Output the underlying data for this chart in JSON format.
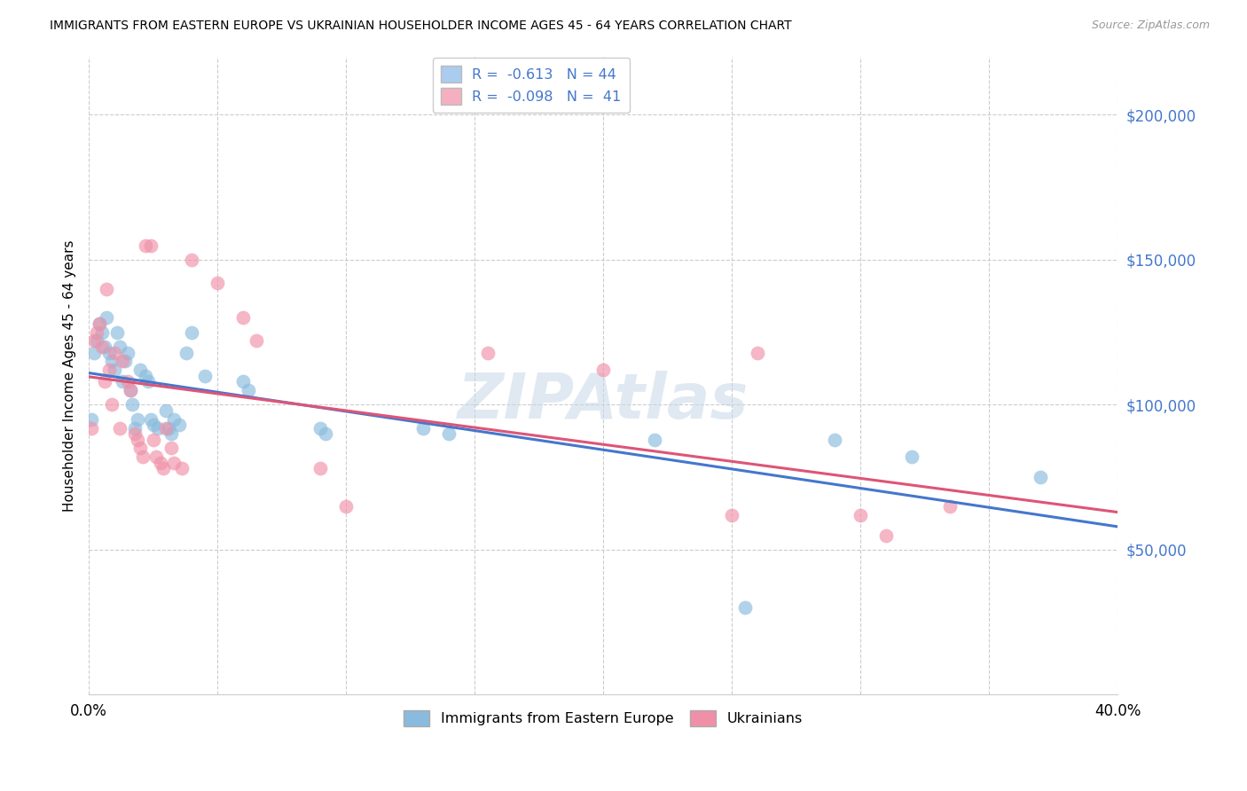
{
  "title": "IMMIGRANTS FROM EASTERN EUROPE VS UKRAINIAN HOUSEHOLDER INCOME AGES 45 - 64 YEARS CORRELATION CHART",
  "source": "Source: ZipAtlas.com",
  "ylabel": "Householder Income Ages 45 - 64 years",
  "yticks": [
    50000,
    100000,
    150000,
    200000
  ],
  "ytick_labels": [
    "$50,000",
    "$100,000",
    "$150,000",
    "$200,000"
  ],
  "xlim": [
    0.0,
    0.4
  ],
  "ylim": [
    0,
    220000
  ],
  "blue_color": "#88bbdd",
  "pink_color": "#f090a8",
  "blue_line_color": "#4477cc",
  "pink_line_color": "#dd5577",
  "blue_scatter": [
    [
      0.001,
      95000
    ],
    [
      0.002,
      118000
    ],
    [
      0.003,
      122000
    ],
    [
      0.004,
      128000
    ],
    [
      0.005,
      125000
    ],
    [
      0.006,
      120000
    ],
    [
      0.007,
      130000
    ],
    [
      0.008,
      118000
    ],
    [
      0.009,
      115000
    ],
    [
      0.01,
      112000
    ],
    [
      0.011,
      125000
    ],
    [
      0.012,
      120000
    ],
    [
      0.013,
      108000
    ],
    [
      0.014,
      115000
    ],
    [
      0.015,
      118000
    ],
    [
      0.016,
      105000
    ],
    [
      0.017,
      100000
    ],
    [
      0.018,
      92000
    ],
    [
      0.019,
      95000
    ],
    [
      0.02,
      112000
    ],
    [
      0.022,
      110000
    ],
    [
      0.023,
      108000
    ],
    [
      0.024,
      95000
    ],
    [
      0.025,
      93000
    ],
    [
      0.027,
      92000
    ],
    [
      0.03,
      98000
    ],
    [
      0.031,
      92000
    ],
    [
      0.032,
      90000
    ],
    [
      0.033,
      95000
    ],
    [
      0.035,
      93000
    ],
    [
      0.038,
      118000
    ],
    [
      0.04,
      125000
    ],
    [
      0.045,
      110000
    ],
    [
      0.06,
      108000
    ],
    [
      0.062,
      105000
    ],
    [
      0.09,
      92000
    ],
    [
      0.092,
      90000
    ],
    [
      0.13,
      92000
    ],
    [
      0.14,
      90000
    ],
    [
      0.22,
      88000
    ],
    [
      0.255,
      30000
    ],
    [
      0.29,
      88000
    ],
    [
      0.32,
      82000
    ],
    [
      0.37,
      75000
    ]
  ],
  "pink_scatter": [
    [
      0.001,
      92000
    ],
    [
      0.002,
      122000
    ],
    [
      0.003,
      125000
    ],
    [
      0.004,
      128000
    ],
    [
      0.005,
      120000
    ],
    [
      0.006,
      108000
    ],
    [
      0.007,
      140000
    ],
    [
      0.008,
      112000
    ],
    [
      0.009,
      100000
    ],
    [
      0.01,
      118000
    ],
    [
      0.012,
      92000
    ],
    [
      0.013,
      115000
    ],
    [
      0.015,
      108000
    ],
    [
      0.016,
      105000
    ],
    [
      0.018,
      90000
    ],
    [
      0.019,
      88000
    ],
    [
      0.02,
      85000
    ],
    [
      0.021,
      82000
    ],
    [
      0.022,
      155000
    ],
    [
      0.024,
      155000
    ],
    [
      0.025,
      88000
    ],
    [
      0.026,
      82000
    ],
    [
      0.028,
      80000
    ],
    [
      0.029,
      78000
    ],
    [
      0.03,
      92000
    ],
    [
      0.032,
      85000
    ],
    [
      0.033,
      80000
    ],
    [
      0.036,
      78000
    ],
    [
      0.04,
      150000
    ],
    [
      0.05,
      142000
    ],
    [
      0.06,
      130000
    ],
    [
      0.065,
      122000
    ],
    [
      0.09,
      78000
    ],
    [
      0.1,
      65000
    ],
    [
      0.155,
      118000
    ],
    [
      0.2,
      112000
    ],
    [
      0.25,
      62000
    ],
    [
      0.26,
      118000
    ],
    [
      0.3,
      62000
    ],
    [
      0.31,
      55000
    ],
    [
      0.335,
      65000
    ]
  ],
  "watermark": "ZIPAtlas",
  "background_color": "#ffffff",
  "grid_color": "#cccccc",
  "legend_blue_label": "R =  -0.613   N = 44",
  "legend_pink_label": "R =  -0.098   N =  41",
  "legend_blue_color": "#aaccee",
  "legend_pink_color": "#f4b0c0",
  "bottom_legend_blue": "Immigrants from Eastern Europe",
  "bottom_legend_pink": "Ukrainians"
}
